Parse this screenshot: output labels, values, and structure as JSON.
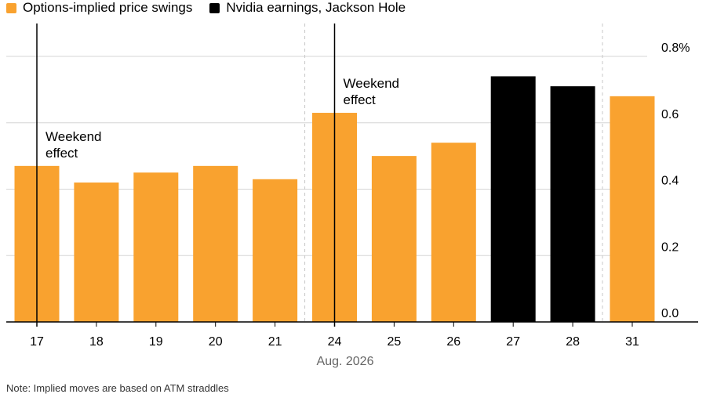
{
  "legend": [
    {
      "label": "Options-implied price swings",
      "color": "#F9A22F"
    },
    {
      "label": "Nvidia earnings, Jackson Hole",
      "color": "#000000"
    }
  ],
  "chart_data": {
    "type": "bar",
    "xlabel": "Aug. 2026",
    "ylabel": "",
    "ylim": [
      0,
      0.8
    ],
    "yticks": [
      "0.0",
      "0.2",
      "0.4",
      "0.6",
      "0.8%"
    ],
    "categories": [
      "17",
      "18",
      "19",
      "20",
      "21",
      "24",
      "25",
      "26",
      "27",
      "28",
      "31"
    ],
    "series": [
      {
        "name": "Options-implied price swings",
        "values": [
          0.47,
          0.42,
          0.45,
          0.47,
          0.43,
          0.63,
          0.5,
          0.54,
          null,
          null,
          0.68
        ]
      },
      {
        "name": "Nvidia earnings, Jackson Hole",
        "values": [
          null,
          null,
          null,
          null,
          null,
          null,
          null,
          null,
          0.74,
          0.71,
          null
        ]
      }
    ],
    "colors": {
      "orange": "#F9A22F",
      "black": "#000000",
      "grid": "#d6d6d6"
    },
    "annotations": [
      {
        "text": [
          "Weekend",
          "effect"
        ],
        "category": "17"
      },
      {
        "text": [
          "Weekend",
          "effect"
        ],
        "category": "24"
      }
    ],
    "week_separators_before": [
      "24",
      "31"
    ],
    "grid": true,
    "legend_position": "top-left"
  },
  "footnote": "Note: Implied moves are based on ATM straddles"
}
